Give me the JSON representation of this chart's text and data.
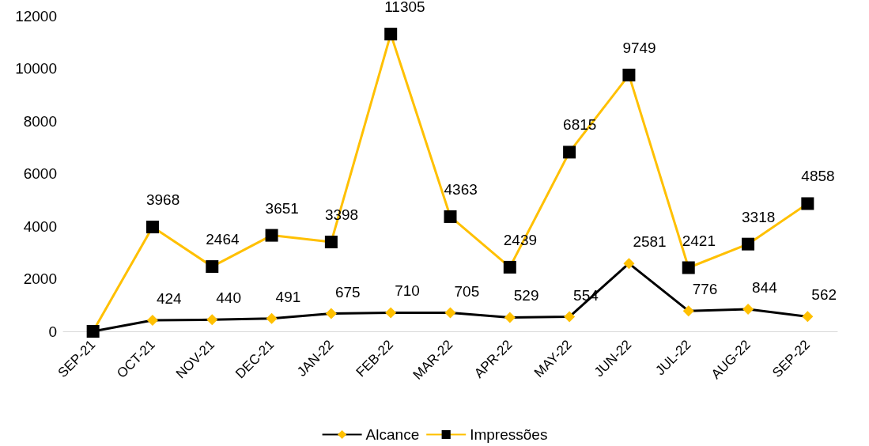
{
  "chart_data": {
    "type": "line",
    "categories": [
      "SEP-21",
      "OCT-21",
      "NOV-21",
      "DEC-21",
      "JAN-22",
      "FEB-22",
      "MAR-22",
      "APR-22",
      "MAY-22",
      "JUN-22",
      "JUL-22",
      "AUG-22",
      "SEP-22"
    ],
    "series": [
      {
        "name": "Alcance",
        "color": "#000000",
        "marker": "diamond",
        "colors": [
          "#ffc000",
          "#ffc000",
          "#ffc000",
          "#ffc000",
          "#ffc000",
          "#ffc000",
          "#ffc000",
          "#ffc000",
          "#ffc000",
          "#ffc000",
          "#ffc000",
          "#ffc000",
          "#ffc000"
        ],
        "values": [
          0,
          424,
          440,
          491,
          675,
          710,
          705,
          529,
          554,
          2581,
          776,
          844,
          562
        ],
        "value_labels": [
          null,
          "424",
          "440",
          "491",
          "675",
          "710",
          "705",
          "529",
          "554",
          "2581",
          "776",
          "844",
          "562"
        ]
      },
      {
        "name": "Impressões",
        "color": "#ffc000",
        "marker": "square",
        "colors": [
          "#000000",
          "#000000",
          "#000000",
          "#000000",
          "#000000",
          "#000000",
          "#000000",
          "#000000",
          "#000000",
          "#000000",
          "#000000",
          "#000000",
          "#000000"
        ],
        "values": [
          0,
          3968,
          2464,
          3651,
          3398,
          11305,
          4363,
          2439,
          6815,
          9749,
          2421,
          3318,
          4858
        ],
        "value_labels": [
          null,
          "3968",
          "2464",
          "3651",
          "3398",
          "11305",
          "4363",
          "2439",
          "6815",
          "9749",
          "2421",
          "3318",
          "4858"
        ]
      }
    ],
    "ylim": [
      0,
      12000
    ],
    "yticks": [
      0,
      2000,
      4000,
      6000,
      8000,
      10000,
      12000
    ],
    "grid": false,
    "legend": "bottom"
  }
}
